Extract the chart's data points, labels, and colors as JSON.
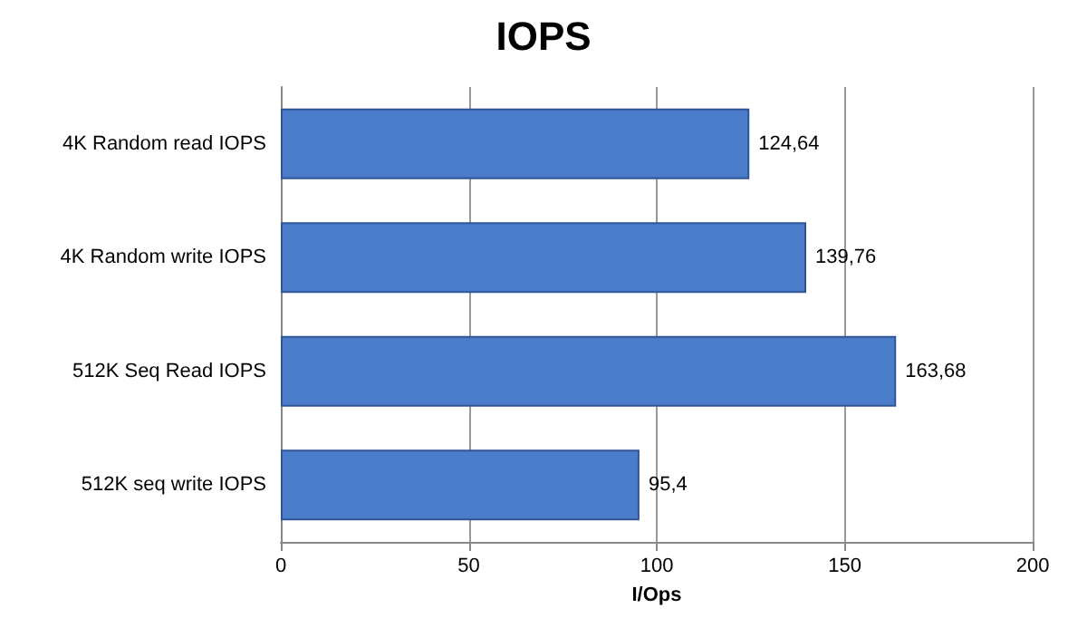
{
  "chart_data": {
    "type": "bar",
    "orientation": "horizontal",
    "title": "IOPS",
    "xlabel": "I/Ops",
    "categories": [
      "4K Random read IOPS",
      "4K Random write IOPS",
      "512K Seq Read IOPS",
      "512K seq write IOPS"
    ],
    "values": [
      124.64,
      139.76,
      163.68,
      95.4
    ],
    "value_labels": [
      "124,64",
      "139,76",
      "163,68",
      "95,4"
    ],
    "color": "#4a7cc9",
    "xlim": [
      0,
      200
    ],
    "xticks": [
      0,
      50,
      100,
      150,
      200
    ],
    "grid": "x"
  }
}
